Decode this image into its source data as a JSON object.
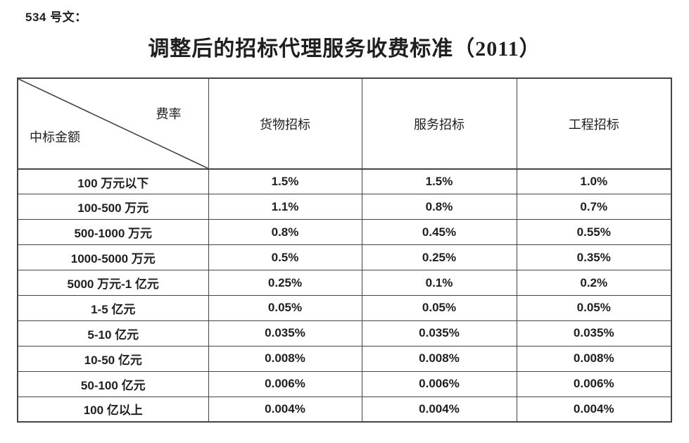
{
  "doc": {
    "label": "534 号文：",
    "title": "调整后的招标代理服务收费标准（2011）"
  },
  "table": {
    "corner": {
      "top_right": "费率",
      "bottom_left": "中标金额"
    },
    "columns": [
      "货物招标",
      "服务招标",
      "工程招标"
    ],
    "rows": [
      {
        "amount": "100 万元以下",
        "goods": "1.5%",
        "service": "1.5%",
        "engineering": "1.0%"
      },
      {
        "amount": "100-500 万元",
        "goods": "1.1%",
        "service": "0.8%",
        "engineering": "0.7%"
      },
      {
        "amount": "500-1000 万元",
        "goods": "0.8%",
        "service": "0.45%",
        "engineering": "0.55%"
      },
      {
        "amount": "1000-5000 万元",
        "goods": "0.5%",
        "service": "0.25%",
        "engineering": "0.35%"
      },
      {
        "amount": "5000 万元-1 亿元",
        "goods": "0.25%",
        "service": "0.1%",
        "engineering": "0.2%"
      },
      {
        "amount": "1-5 亿元",
        "goods": "0.05%",
        "service": "0.05%",
        "engineering": "0.05%"
      },
      {
        "amount": "5-10 亿元",
        "goods": "0.035%",
        "service": "0.035%",
        "engineering": "0.035%"
      },
      {
        "amount": "10-50 亿元",
        "goods": "0.008%",
        "service": "0.008%",
        "engineering": "0.008%"
      },
      {
        "amount": "50-100 亿元",
        "goods": "0.006%",
        "service": "0.006%",
        "engineering": "0.006%"
      },
      {
        "amount": "100 亿以上",
        "goods": "0.004%",
        "service": "0.004%",
        "engineering": "0.004%"
      }
    ]
  },
  "theme": {
    "border_color": "#454545",
    "text_color": "#1f1f1f",
    "page_bg": "#ffffff"
  }
}
